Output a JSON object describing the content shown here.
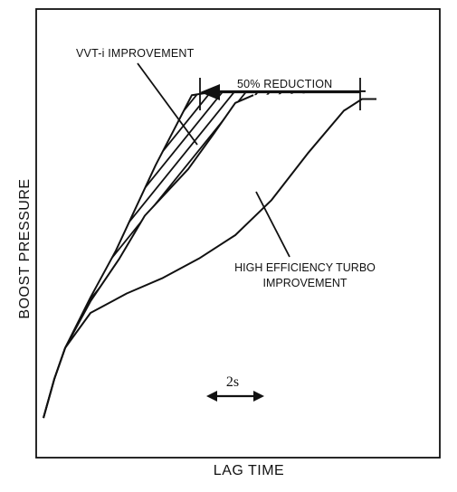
{
  "chart_data": {
    "type": "line",
    "xlabel": "LAG TIME",
    "ylabel": "BOOST PRESSURE",
    "xlim": [
      0,
      10
    ],
    "ylim": [
      0,
      10
    ],
    "series": [
      {
        "x": [
          0.2,
          0.5,
          0.8,
          1.5,
          2.5,
          3.5,
          4.5,
          5.5,
          6.5,
          7.5,
          8.5,
          9.0,
          9.4
        ],
        "y": [
          0.3,
          1.3,
          2.1,
          3.0,
          3.5,
          3.9,
          4.4,
          5.0,
          5.9,
          7.1,
          8.2,
          8.5,
          8.5
        ]
      },
      {
        "x": [
          0.2,
          0.5,
          0.8,
          1.5,
          2.3,
          3.0,
          3.6,
          4.2,
          4.9,
          5.5,
          6.0
        ],
        "y": [
          0.3,
          1.3,
          2.1,
          3.3,
          4.4,
          5.5,
          6.1,
          6.7,
          7.6,
          8.4,
          8.6
        ]
      },
      {
        "x": [
          0.2,
          0.5,
          0.8,
          1.5,
          2.2,
          2.8,
          3.3,
          3.8,
          4.3,
          5.0,
          6.0,
          9.1
        ],
        "y": [
          0.3,
          1.3,
          2.1,
          3.4,
          4.6,
          5.8,
          6.8,
          7.7,
          8.6,
          8.7,
          8.7,
          8.7
        ]
      }
    ],
    "annotations": [
      {
        "text": "VVT-i IMPROVEMENT"
      },
      {
        "text": "50% REDUCTION"
      },
      {
        "text": "HIGH EFFICIENCY TURBO IMPROVEMENT"
      },
      {
        "text": "2s"
      }
    ]
  },
  "labels": {
    "vvti": "VVT-i IMPROVEMENT",
    "reduction": "50% REDUCTION",
    "turbo": "HIGH EFFICIENCY TURBO IMPROVEMENT",
    "scale": "2s"
  }
}
